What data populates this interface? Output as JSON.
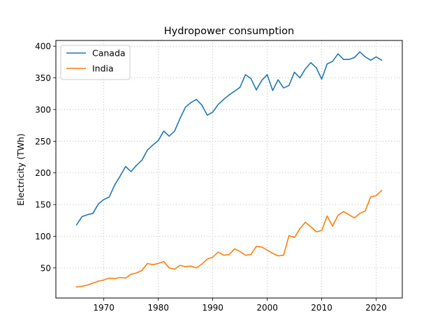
{
  "chart_data": {
    "type": "line",
    "title": "Hydropower consumption",
    "xlabel": "",
    "ylabel": "Electricity (TWh)",
    "xlim": [
      1961.2,
      2024.8
    ],
    "ylim": [
      2.5,
      409
    ],
    "xticks": [
      1970,
      1980,
      1990,
      2000,
      2010,
      2020
    ],
    "yticks": [
      50,
      100,
      150,
      200,
      250,
      300,
      350,
      400
    ],
    "grid": true,
    "grid_style": "dotted",
    "legend_position": "top-left",
    "x": [
      1965,
      1966,
      1967,
      1968,
      1969,
      1970,
      1971,
      1972,
      1973,
      1974,
      1975,
      1976,
      1977,
      1978,
      1979,
      1980,
      1981,
      1982,
      1983,
      1984,
      1985,
      1986,
      1987,
      1988,
      1989,
      1990,
      1991,
      1992,
      1993,
      1994,
      1995,
      1996,
      1997,
      1998,
      1999,
      2000,
      2001,
      2002,
      2003,
      2004,
      2005,
      2006,
      2007,
      2008,
      2009,
      2010,
      2011,
      2012,
      2013,
      2014,
      2015,
      2016,
      2017,
      2018,
      2019,
      2020,
      2021
    ],
    "series": [
      {
        "name": "Canada",
        "color": "#1f77b4",
        "values": [
          118,
          131,
          134,
          136,
          151,
          158,
          162,
          181,
          195,
          210,
          202,
          212,
          220,
          236,
          244,
          251,
          266,
          258,
          266,
          286,
          304,
          311,
          316,
          307,
          291,
          296,
          308,
          316,
          323,
          329,
          335,
          355,
          349,
          331,
          346,
          355,
          330,
          347,
          334,
          338,
          359,
          350,
          364,
          374,
          366,
          348,
          372,
          376,
          388,
          379,
          379,
          382,
          391,
          383,
          378,
          383,
          378
        ]
      },
      {
        "name": "India",
        "color": "#ff7f0e",
        "values": [
          20,
          21,
          23,
          26,
          29,
          31,
          34,
          33,
          35,
          34,
          40,
          42,
          46,
          57,
          55,
          57,
          60,
          50,
          48,
          54,
          52,
          53,
          50,
          56,
          64,
          67,
          75,
          70,
          71,
          80,
          76,
          70,
          71,
          84,
          83,
          78,
          73,
          69,
          70,
          101,
          98,
          112,
          122,
          115,
          107,
          109,
          132,
          116,
          133,
          139,
          134,
          129,
          136,
          140,
          162,
          164,
          172
        ]
      }
    ]
  }
}
